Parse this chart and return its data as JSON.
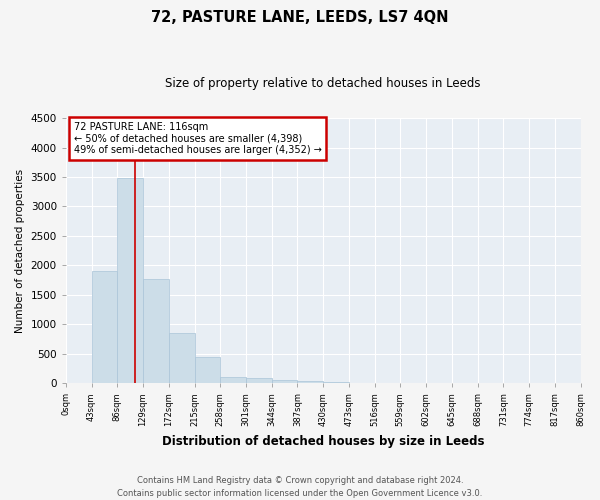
{
  "title": "72, PASTURE LANE, LEEDS, LS7 4QN",
  "subtitle": "Size of property relative to detached houses in Leeds",
  "xlabel": "Distribution of detached houses by size in Leeds",
  "ylabel": "Number of detached properties",
  "bar_color": "#ccdde8",
  "bar_edge_color": "#aac4d8",
  "background_color": "#e8eef4",
  "grid_color": "#ffffff",
  "fig_background": "#f5f5f5",
  "annotation_box_color": "#cc0000",
  "vline_color": "#cc0000",
  "vline_position": 2.7,
  "annotation_text": "72 PASTURE LANE: 116sqm\n← 50% of detached houses are smaller (4,398)\n49% of semi-detached houses are larger (4,352) →",
  "footer_line1": "Contains HM Land Registry data © Crown copyright and database right 2024.",
  "footer_line2": "Contains public sector information licensed under the Open Government Licence v3.0.",
  "tick_labels": [
    "0sqm",
    "43sqm",
    "86sqm",
    "129sqm",
    "172sqm",
    "215sqm",
    "258sqm",
    "301sqm",
    "344sqm",
    "387sqm",
    "430sqm",
    "473sqm",
    "516sqm",
    "559sqm",
    "602sqm",
    "645sqm",
    "688sqm",
    "731sqm",
    "774sqm",
    "817sqm",
    "860sqm"
  ],
  "bar_values": [
    0,
    1900,
    3490,
    1760,
    855,
    445,
    100,
    85,
    55,
    35,
    15,
    0,
    0,
    0,
    0,
    0,
    0,
    0,
    0,
    0
  ],
  "ylim": [
    0,
    4500
  ],
  "yticks": [
    0,
    500,
    1000,
    1500,
    2000,
    2500,
    3000,
    3500,
    4000,
    4500
  ]
}
